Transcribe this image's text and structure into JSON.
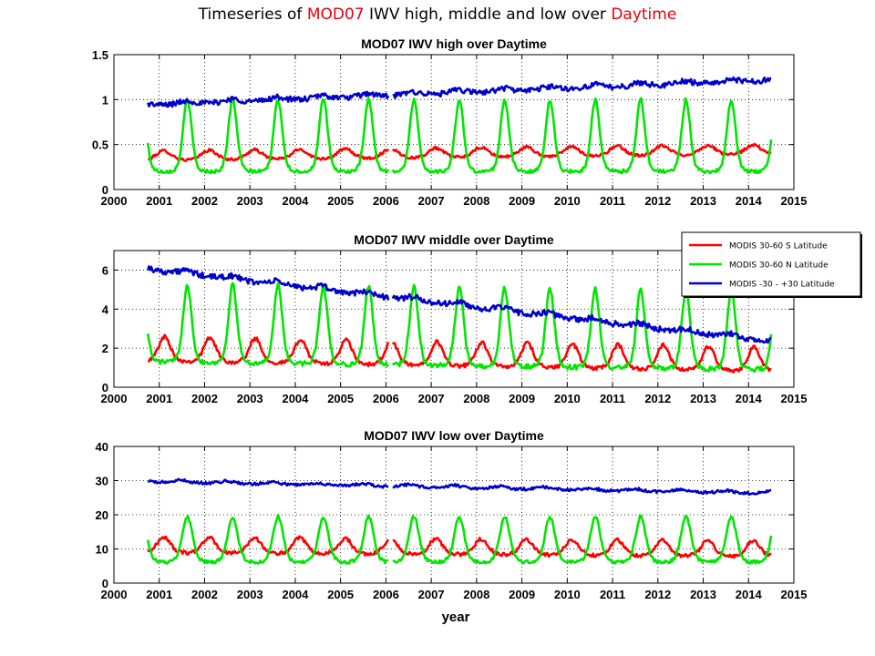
{
  "title": {
    "parts": [
      {
        "text": "Timeseries of ",
        "color": "#000000"
      },
      {
        "text": "MOD07",
        "color": "#e8000b"
      },
      {
        "text": " IWV high, middle and low over ",
        "color": "#000000"
      },
      {
        "text": "Daytime",
        "color": "#e8000b"
      }
    ]
  },
  "colors": {
    "red": "#ff0000",
    "green": "#00e600",
    "blue": "#0000cc"
  },
  "legend": {
    "placement": "right of middle panel",
    "entries": [
      {
        "label": "MODIS 30-60 S Latitude",
        "color": "#ff0000"
      },
      {
        "label": "MODIS 30-60 N Latitude",
        "color": "#00e600"
      },
      {
        "label": "MODIS -30 - +30 Latitude",
        "color": "#0000cc"
      }
    ]
  },
  "chart_data": [
    {
      "type": "line",
      "title": "MOD07 IWV high over Daytime",
      "xlabel": "",
      "ylabel": "",
      "xlim": [
        2000,
        2015
      ],
      "ylim": [
        0,
        1.5
      ],
      "xticks": [
        "2000",
        "2001",
        "2002",
        "2003",
        "2004",
        "2005",
        "2006",
        "2007",
        "2008",
        "2009",
        "2010",
        "2011",
        "2012",
        "2013",
        "2014",
        "2015"
      ],
      "yticks": [
        "0",
        "0.5",
        "1",
        "1.5"
      ],
      "grid": true,
      "x_range": [
        2000.75,
        2014.5
      ],
      "gap_at": 2006.1,
      "series": [
        {
          "color": "#ff0000",
          "model": {
            "base": 0.3,
            "trend": 0.005,
            "amp": 0.13,
            "peak": 0.1,
            "sharp": 0.8,
            "noise": 0.015
          }
        },
        {
          "color": "#00e600",
          "model": {
            "base": 0.2,
            "trend": 0.0,
            "amp": 0.8,
            "peak": 0.62,
            "sharp": 3.0,
            "noise": 0.02
          }
        },
        {
          "color": "#0000cc",
          "model": {
            "base": 0.93,
            "trend": 0.02,
            "amp": 0.04,
            "peak": 0.6,
            "sharp": 1.0,
            "noise": 0.03
          }
        }
      ]
    },
    {
      "type": "line",
      "title": "MOD07 IWV middle over Daytime",
      "xlabel": "",
      "ylabel": "",
      "xlim": [
        2000,
        2015
      ],
      "ylim": [
        0,
        7
      ],
      "xticks": [
        "2000",
        "2001",
        "2002",
        "2003",
        "2004",
        "2005",
        "2006",
        "2007",
        "2008",
        "2009",
        "2010",
        "2011",
        "2012",
        "2013",
        "2014",
        "2015"
      ],
      "yticks": [
        "0",
        "2",
        "4",
        "6"
      ],
      "grid": true,
      "x_range": [
        2000.75,
        2014.5
      ],
      "gap_at": 2006.1,
      "series": [
        {
          "color": "#ff0000",
          "model": {
            "base": 1.3,
            "trend": -0.04,
            "amp": 1.3,
            "peak": 0.12,
            "sharp": 1.5,
            "noise": 0.1
          }
        },
        {
          "color": "#00e600",
          "model": {
            "base": 1.3,
            "trend": -0.03,
            "amp": 4.0,
            "peak": 0.62,
            "sharp": 3.0,
            "noise": 0.12
          }
        },
        {
          "color": "#0000cc",
          "model": {
            "base": 6.0,
            "trend": -0.27,
            "amp": 0.2,
            "peak": 0.6,
            "sharp": 1.0,
            "noise": 0.15
          }
        }
      ]
    },
    {
      "type": "line",
      "title": "MOD07 IWV low over Daytime",
      "xlabel": "year",
      "ylabel": "",
      "xlim": [
        2000,
        2015
      ],
      "ylim": [
        0,
        40
      ],
      "xticks": [
        "2000",
        "2001",
        "2002",
        "2003",
        "2004",
        "2005",
        "2006",
        "2007",
        "2008",
        "2009",
        "2010",
        "2011",
        "2012",
        "2013",
        "2014",
        "2015"
      ],
      "yticks": [
        "0",
        "10",
        "20",
        "30",
        "40"
      ],
      "grid": true,
      "x_range": [
        2000.75,
        2014.5
      ],
      "gap_at": 2006.1,
      "series": [
        {
          "color": "#ff0000",
          "model": {
            "base": 8.5,
            "trend": -0.08,
            "amp": 5.0,
            "peak": 0.1,
            "sharp": 1.2,
            "noise": 0.5
          }
        },
        {
          "color": "#00e600",
          "model": {
            "base": 6.0,
            "trend": 0.0,
            "amp": 13.5,
            "peak": 0.62,
            "sharp": 2.2,
            "noise": 0.5
          }
        },
        {
          "color": "#0000cc",
          "model": {
            "base": 29.5,
            "trend": -0.25,
            "amp": 0.8,
            "peak": 0.5,
            "sharp": 1.0,
            "noise": 0.4
          }
        }
      ]
    }
  ]
}
